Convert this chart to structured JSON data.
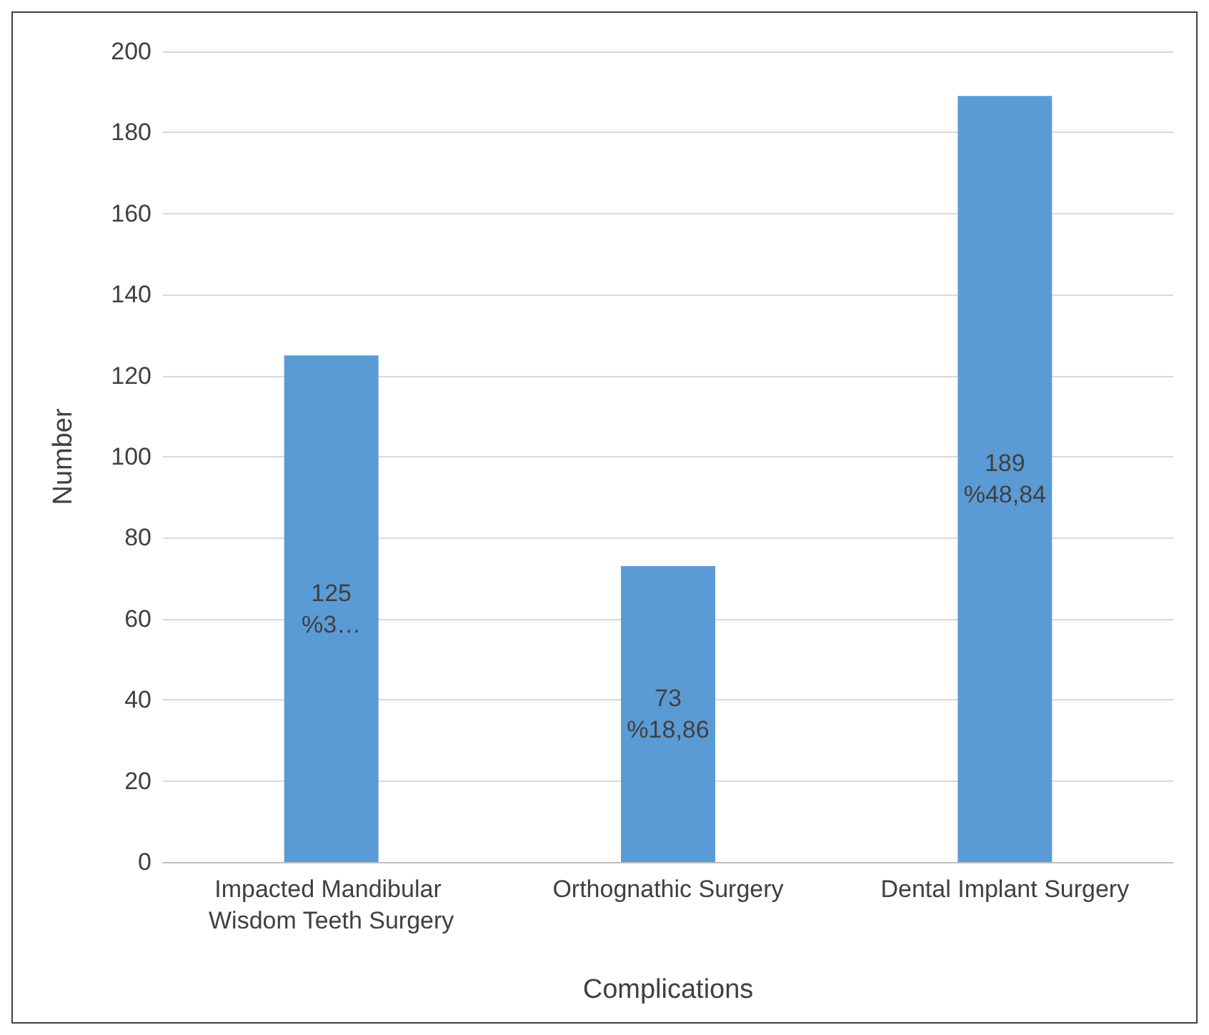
{
  "chart_data": {
    "type": "bar",
    "categories": [
      "Impacted Mandibular Wisdom Teeth Surgery",
      "Orthognathic Surgery",
      "Dental Implant Surgery"
    ],
    "values": [
      125,
      73,
      189
    ],
    "value_labels": [
      "125\n%3…",
      "73\n%18,86",
      "189\n%48,84"
    ],
    "color": "#5b9bd5",
    "xlabel": "Complications",
    "ylabel": "Number",
    "ylim": [
      0,
      200
    ],
    "yticks": [
      0,
      20,
      40,
      60,
      80,
      100,
      120,
      140,
      160,
      180,
      200
    ],
    "grid": "y"
  }
}
